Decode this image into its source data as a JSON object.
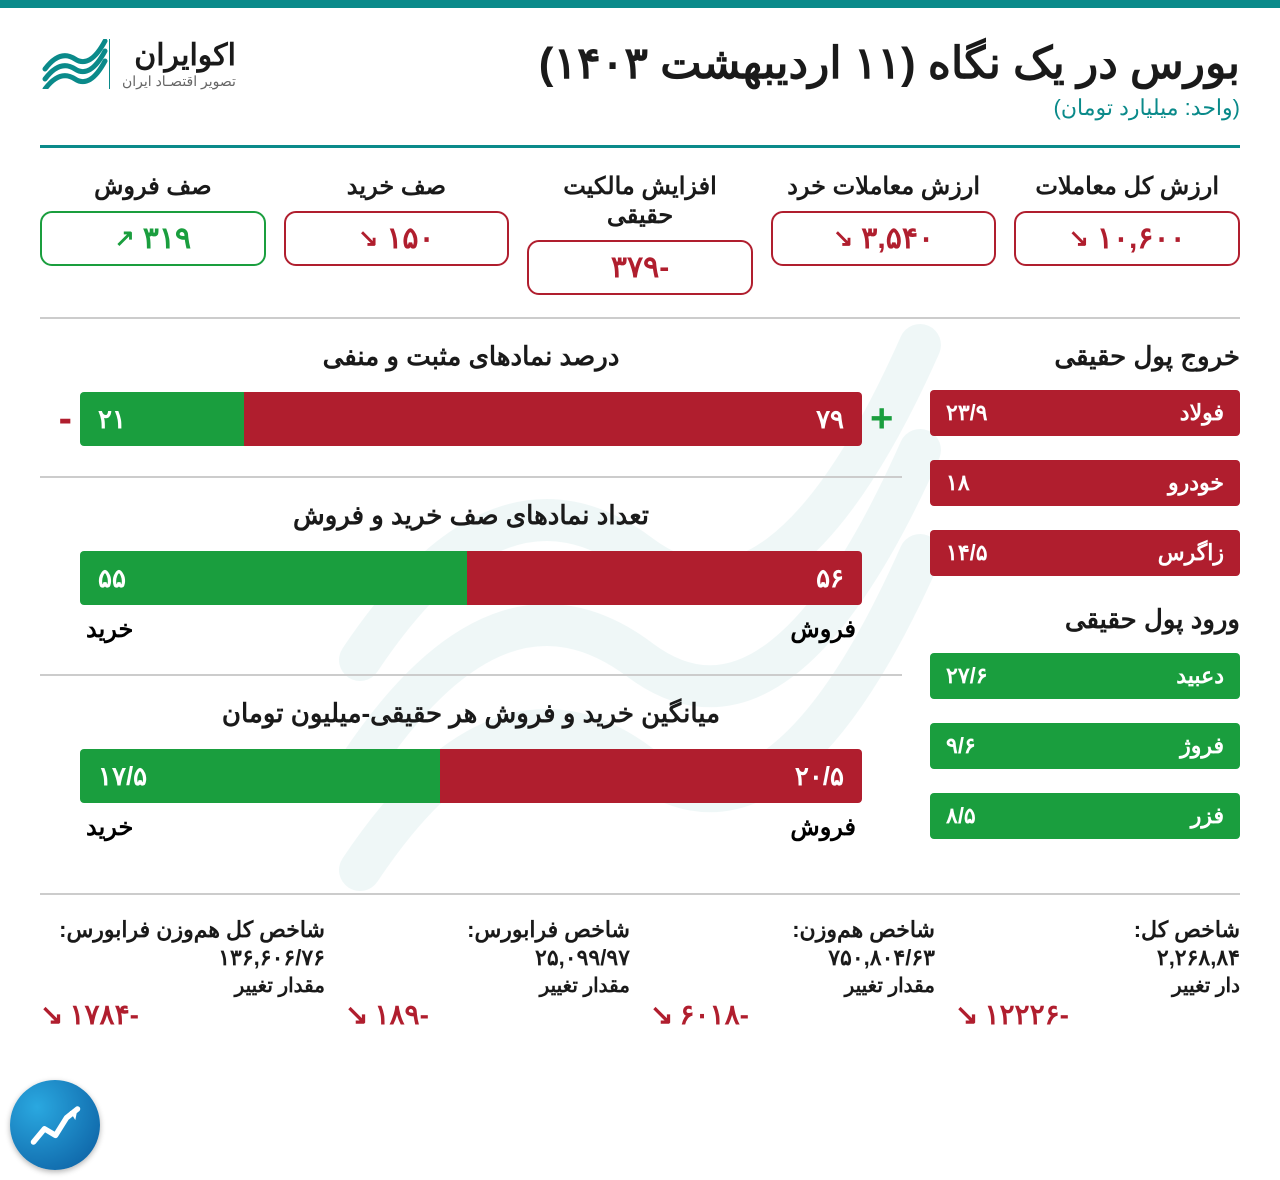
{
  "colors": {
    "teal": "#0a8a8a",
    "red": "#b01e2e",
    "green": "#1a9e3e",
    "text": "#1a1a1a"
  },
  "header": {
    "title": "بورس در یک نگاه (۱۱ اردیبهشت ۱۴۰۳)",
    "subtitle": "(واحد: میلیارد تومان)",
    "logo_name": "اکوایران",
    "logo_tag": "تصویر اقتصـاد ایران"
  },
  "metrics": [
    {
      "label": "ارزش کل معاملات",
      "value": "۱۰,۶۰۰",
      "dir": "down"
    },
    {
      "label": "ارزش معاملات خرد",
      "value": "۳,۵۴۰",
      "dir": "down"
    },
    {
      "label": "افزایش مالکیت حقیقی",
      "value": "-۳۷۹",
      "dir": "down"
    },
    {
      "label": "صف خرید",
      "value": "۱۵۰",
      "dir": "down"
    },
    {
      "label": "صف فروش",
      "value": "۳۱۹",
      "dir": "up"
    }
  ],
  "outflow": {
    "title": "خروج پول حقیقی",
    "items": [
      {
        "name": "فولاد",
        "value": "۲۳/۹"
      },
      {
        "name": "خودرو",
        "value": "۱۸"
      },
      {
        "name": "زاگرس",
        "value": "۱۴/۵"
      }
    ]
  },
  "inflow": {
    "title": "ورود پول حقیقی",
    "items": [
      {
        "name": "دعبید",
        "value": "۲۷/۶"
      },
      {
        "name": "فروژ",
        "value": "۹/۶"
      },
      {
        "name": "فزر",
        "value": "۸/۵"
      }
    ]
  },
  "chart_pct": {
    "title": "درصد نمادهای مثبت و منفی",
    "neg_value": "۷۹",
    "neg_pct": 79,
    "pos_value": "۲۱",
    "pos_pct": 21,
    "sign_minus": "-",
    "sign_plus": "+"
  },
  "chart_count": {
    "title": "تعداد نمادهای صف خرید و فروش",
    "sell_value": "۵۶",
    "sell_pct": 50.5,
    "buy_value": "۵۵",
    "buy_pct": 49.5,
    "sell_label": "فروش",
    "buy_label": "خرید"
  },
  "chart_avg": {
    "title": "میانگین خرید و فروش هر حقیقی-میلیون تومان",
    "sell_value": "۲۰/۵",
    "sell_pct": 54,
    "buy_value": "۱۷/۵",
    "buy_pct": 46,
    "sell_label": "فروش",
    "buy_label": "خرید"
  },
  "indices": [
    {
      "name": "شاخص کل:",
      "value": "۲,۲۶۸,۸۴",
      "change_label": "دار تغییر",
      "change": "-۱۲۲۲۶"
    },
    {
      "name": "شاخص هم‌وزن:",
      "value": "۷۵۰,۸۰۴/۶۳",
      "change_label": "مقدار تغییر",
      "change": "-۶۰۱۸"
    },
    {
      "name": "شاخص فرابورس:",
      "value": "۲۵,۰۹۹/۹۷",
      "change_label": "مقدار تغییر",
      "change": "-۱۸۹"
    },
    {
      "name": "شاخص کل هم‌وزن فرابورس:",
      "value": "۱۳۶,۶۰۶/۷۶",
      "change_label": "مقدار تغییر",
      "change": "-۱۷۸۴"
    }
  ]
}
